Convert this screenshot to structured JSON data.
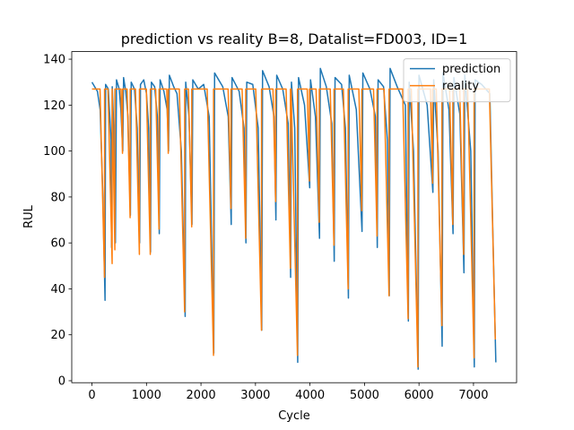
{
  "chart_data": {
    "type": "line",
    "title": "prediction vs reality B=8, Datalist=FD003, ID=1",
    "xlabel": "Cycle",
    "ylabel": "RUL",
    "xlim": [
      -371,
      7791
    ],
    "ylim": [
      -0.86,
      143.3
    ],
    "xticks": [
      0,
      1000,
      2000,
      3000,
      4000,
      5000,
      6000,
      7000
    ],
    "yticks": [
      0,
      20,
      40,
      60,
      80,
      100,
      120,
      140
    ],
    "legend": "upper right",
    "series": [
      {
        "name": "prediction",
        "color": "#1f77b4",
        "x": [
          0,
          50,
          100,
          150,
          200,
          240,
          250,
          300,
          350,
          360,
          372,
          400,
          430,
          450,
          500,
          530,
          565,
          580,
          620,
          660,
          705,
          720,
          780,
          830,
          875,
          890,
          950,
          1000,
          1040,
          1075,
          1090,
          1150,
          1200,
          1235,
          1250,
          1320,
          1380,
          1405,
          1420,
          1500,
          1560,
          1640,
          1710,
          1720,
          1780,
          1835,
          1850,
          1950,
          2050,
          2150,
          2235,
          2250,
          2400,
          2500,
          2555,
          2570,
          2700,
          2790,
          2825,
          2840,
          2950,
          3050,
          3115,
          3130,
          3250,
          3340,
          3375,
          3390,
          3500,
          3600,
          3645,
          3660,
          3720,
          3775,
          3790,
          3900,
          3995,
          4010,
          4100,
          4175,
          4190,
          4300,
          4400,
          4445,
          4460,
          4580,
          4650,
          4705,
          4720,
          4850,
          4955,
          4970,
          5100,
          5200,
          5235,
          5250,
          5350,
          5420,
          5455,
          5470,
          5600,
          5750,
          5805,
          5820,
          5900,
          5985,
          6000,
          6150,
          6255,
          6270,
          6350,
          6425,
          6440,
          6550,
          6625,
          6640,
          6750,
          6825,
          6840,
          6950,
          7015,
          7030,
          7150,
          7300,
          7350,
          7410
        ],
        "values": [
          130,
          128,
          126,
          118,
          80,
          35,
          129,
          127,
          105,
          58,
          128,
          110,
          60,
          131,
          127,
          118,
          100,
          132,
          126,
          115,
          72,
          130,
          127,
          110,
          60,
          129,
          131,
          125,
          110,
          56,
          130,
          128,
          115,
          64,
          131,
          126,
          118,
          100,
          133,
          128,
          125,
          100,
          28,
          130,
          115,
          68,
          131,
          127,
          129,
          115,
          12,
          134,
          128,
          115,
          68,
          132,
          126,
          110,
          60,
          130,
          129,
          110,
          22,
          135,
          128,
          115,
          70,
          133,
          127,
          112,
          45,
          130,
          110,
          8,
          132,
          120,
          84,
          131,
          115,
          62,
          136,
          128,
          112,
          52,
          132,
          129,
          110,
          36,
          133,
          118,
          65,
          134,
          127,
          115,
          58,
          131,
          128,
          105,
          37,
          136,
          128,
          120,
          26,
          130,
          100,
          5,
          133,
          120,
          82,
          131,
          100,
          15,
          134,
          118,
          64,
          132,
          116,
          47,
          133,
          100,
          6,
          131,
          129,
          125,
          70,
          8
        ]
      },
      {
        "name": "reality",
        "color": "#ff7f0e",
        "x": [
          0,
          148,
          230,
          231,
          294,
          370,
          371,
          420,
          421,
          532,
          560,
          561,
          644,
          700,
          701,
          798,
          870,
          871,
          998,
          1070,
          1071,
          1169,
          1230,
          1231,
          1372,
          1400,
          1401,
          1603,
          1700,
          1701,
          1770,
          1830,
          1831,
          2114,
          2230,
          2231,
          2498,
          2550,
          2551,
          2755,
          2820,
          2821,
          3005,
          3110,
          3111,
          3321,
          3370,
          3371,
          3562,
          3640,
          3641,
          3654,
          3770,
          3771,
          3950,
          3990,
          3991,
          4112,
          4170,
          4171,
          4372,
          4440,
          4441,
          4613,
          4700,
          4701,
          4897,
          4950,
          4951,
          5166,
          5230,
          5231,
          5360,
          5450,
          5451,
          5700,
          5800,
          5801,
          5859,
          5980,
          5981,
          6211,
          6250,
          6251,
          6317,
          6420,
          6421,
          6561,
          6620,
          6621,
          6748,
          6820,
          6821,
          6893,
          7010,
          7011,
          7291,
          7400
        ],
        "values": [
          127,
          127,
          45,
          127,
          127,
          51,
          127,
          57,
          127,
          127,
          99,
          127,
          127,
          71,
          127,
          127,
          55,
          127,
          127,
          55,
          127,
          127,
          66,
          127,
          127,
          99,
          127,
          127,
          30,
          127,
          127,
          67,
          127,
          127,
          11,
          127,
          127,
          75,
          127,
          127,
          62,
          127,
          127,
          22,
          127,
          127,
          78,
          127,
          127,
          49,
          127,
          127,
          11,
          127,
          127,
          87,
          127,
          127,
          69,
          127,
          127,
          59,
          127,
          127,
          40,
          127,
          127,
          74,
          127,
          127,
          63,
          127,
          127,
          37,
          127,
          127,
          27,
          127,
          127,
          6,
          127,
          127,
          86,
          127,
          127,
          24,
          127,
          127,
          68,
          127,
          127,
          55,
          127,
          127,
          10,
          127,
          127,
          18
        ]
      }
    ]
  }
}
